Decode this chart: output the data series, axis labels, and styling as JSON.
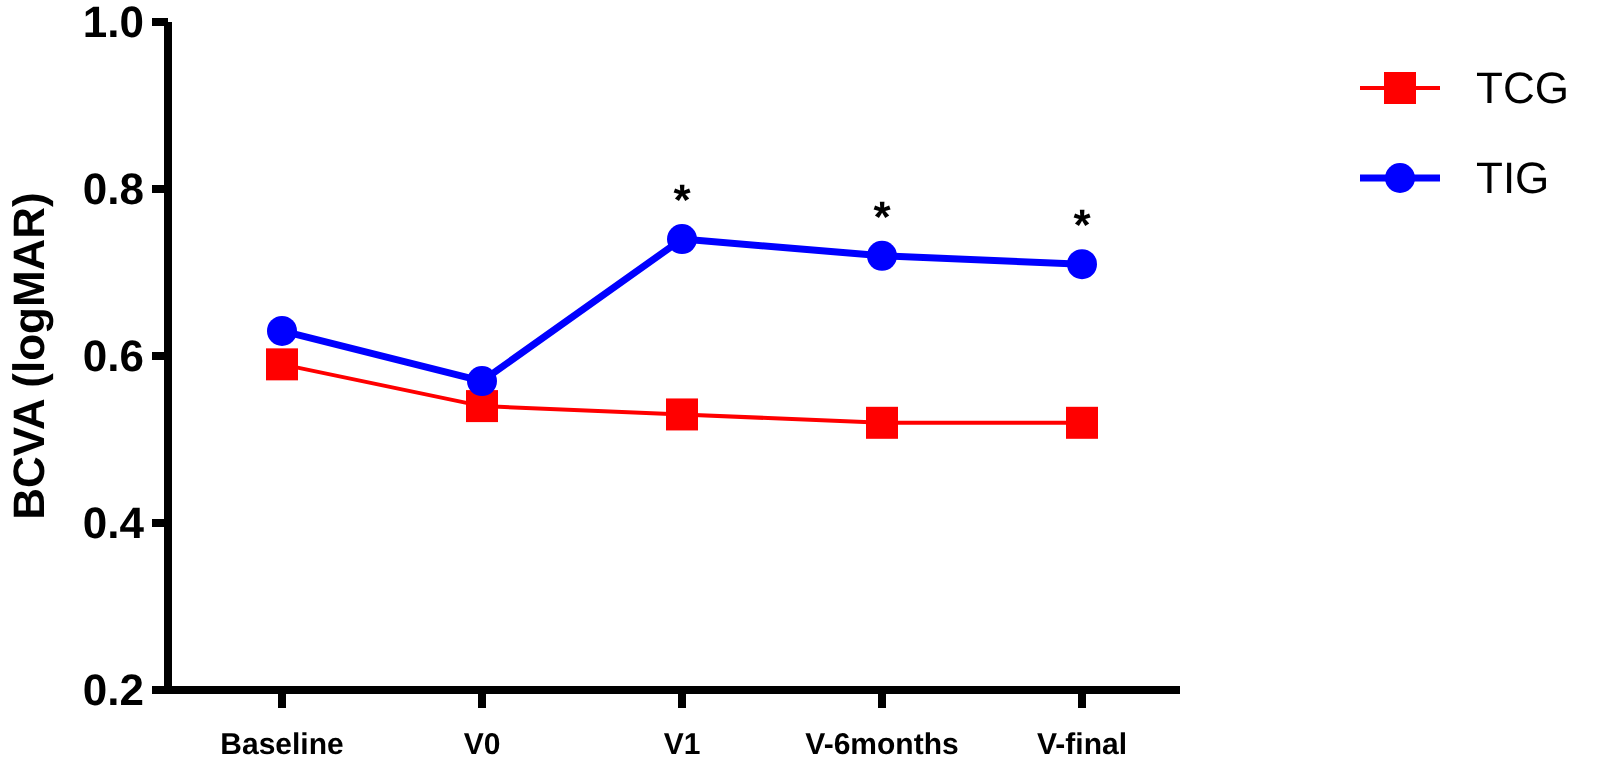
{
  "chart_data": {
    "type": "line",
    "ylabel": "BCVA (logMAR)",
    "categories": [
      "Baseline",
      "V0",
      "V1",
      "V-6months",
      "V-final"
    ],
    "series": [
      {
        "name": "TCG",
        "color": "#ff0000",
        "marker": "square",
        "values": [
          0.59,
          0.54,
          0.53,
          0.52,
          0.52
        ]
      },
      {
        "name": "TIG",
        "color": "#0000ff",
        "marker": "circle",
        "values": [
          0.63,
          0.57,
          0.74,
          0.72,
          0.71
        ]
      }
    ],
    "ylim": [
      0.2,
      1.0
    ],
    "yticks": [
      {
        "value": 0.2,
        "label": "0.2"
      },
      {
        "value": 0.4,
        "label": "0.4"
      },
      {
        "value": 0.6,
        "label": "0.6"
      },
      {
        "value": 0.8,
        "label": "0.8"
      },
      {
        "value": 1.0,
        "label": "1.0"
      }
    ],
    "annotations": [
      {
        "text": "*",
        "x": "V1",
        "y": 0.74
      },
      {
        "text": "*",
        "x": "V-6months",
        "y": 0.72
      },
      {
        "text": "*",
        "x": "V-final",
        "y": 0.71
      }
    ],
    "grid": false,
    "legend": "top right"
  }
}
